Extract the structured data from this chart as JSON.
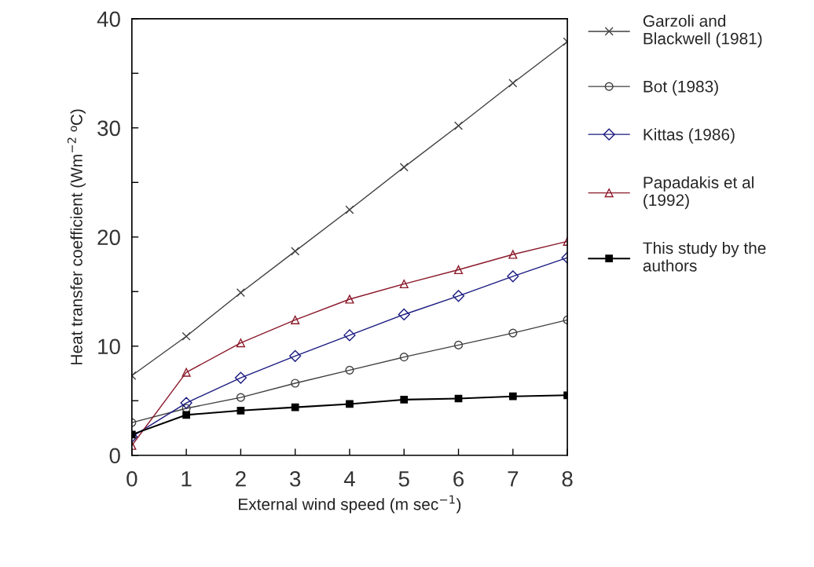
{
  "chart_data": {
    "type": "line",
    "xlabel": "External wind speed (m sec$^{−1}$)",
    "ylabel": "Heat transfer coefficient (Wm$^{−2}$ ºC)",
    "x": [
      0,
      1,
      2,
      3,
      4,
      5,
      6,
      7,
      8
    ],
    "series": [
      {
        "name": "Garzoli and\nBlackwell (1981)",
        "color": "#404040",
        "marker": "cross",
        "values": [
          7.3,
          10.9,
          14.9,
          18.7,
          22.5,
          26.4,
          30.2,
          34.1,
          37.9
        ]
      },
      {
        "name": "Bot (1983)",
        "color": "#404040",
        "marker": "circle",
        "values": [
          3.0,
          4.3,
          5.3,
          6.6,
          7.8,
          9.0,
          10.1,
          11.2,
          12.4
        ]
      },
      {
        "name": "Kittas (1986)",
        "color": "#1a1a80",
        "marker": "diamond",
        "values": [
          1.7,
          4.8,
          7.1,
          9.1,
          11.0,
          12.9,
          14.6,
          16.4,
          18.1
        ]
      },
      {
        "name": "Papadakis et al\n(1992)",
        "color": "#8b1a2b",
        "marker": "triangle",
        "values": [
          0.9,
          7.6,
          10.3,
          12.4,
          14.3,
          15.7,
          17.0,
          18.4,
          19.6
        ]
      },
      {
        "name": "This study by the\nauthors",
        "color": "#000000",
        "marker": "square",
        "values": [
          1.9,
          3.7,
          4.1,
          4.4,
          4.7,
          5.1,
          5.2,
          5.4,
          5.5
        ]
      }
    ],
    "xlim": [
      0,
      8
    ],
    "xticks": [
      0,
      1,
      2,
      3,
      4,
      5,
      6,
      7,
      8
    ],
    "ylim": [
      0,
      40
    ],
    "yticks": [
      0,
      {
        "value": 5,
        "label": null
      },
      10,
      {
        "value": 15,
        "label": null
      },
      20,
      {
        "value": 25,
        "label": null
      },
      30,
      {
        "value": 35,
        "label": null
      },
      40
    ],
    "grid": false,
    "legend": "right",
    "line_style": "solid"
  }
}
